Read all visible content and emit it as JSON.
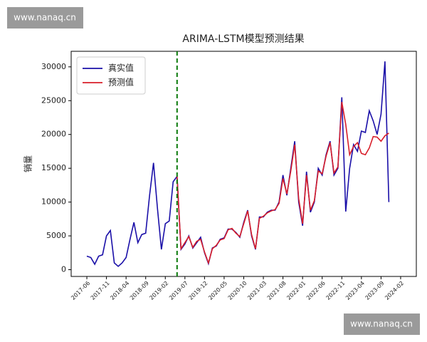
{
  "watermarks": [
    "www.nanaq.cn",
    "www.nanaq.cn"
  ],
  "chart_data": {
    "type": "line",
    "title": "ARIMA-LSTM模型预测结果",
    "y_label": "销量",
    "categories": [
      "2017-06",
      null,
      null,
      null,
      null,
      "2017-11",
      null,
      null,
      null,
      null,
      "2018-04",
      null,
      null,
      null,
      null,
      "2018-09",
      null,
      null,
      null,
      null,
      "2019-02",
      null,
      null,
      null,
      null,
      "2019-07",
      null,
      null,
      null,
      null,
      "2019-12",
      null,
      null,
      null,
      null,
      "2020-05",
      null,
      null,
      null,
      null,
      "2020-10",
      null,
      null,
      null,
      null,
      "2021-03",
      null,
      null,
      null,
      null,
      "2021-08",
      null,
      null,
      null,
      null,
      "2022-01",
      null,
      null,
      null,
      null,
      "2022-06",
      null,
      null,
      null,
      null,
      "2022-11",
      null,
      null,
      null,
      null,
      "2023-04",
      null,
      null,
      null,
      null,
      "2023-09",
      null,
      null,
      null,
      null,
      "2024-02"
    ],
    "series": [
      {
        "name": "真实值",
        "color": "#1a0fa8",
        "values": [
          2000,
          1800,
          800,
          2000,
          2200,
          5000,
          5800,
          1000,
          500,
          1000,
          1800,
          4500,
          7000,
          4000,
          5200,
          5400,
          11000,
          15800,
          9000,
          3000,
          6800,
          7200,
          13000,
          13800,
          3000,
          3800,
          5000,
          3200,
          4000,
          4800,
          2500,
          900,
          3200,
          3500,
          4500,
          4700,
          6000,
          6000,
          5500,
          4800,
          7000,
          8800,
          5000,
          3000,
          7800,
          7800,
          8500,
          8800,
          8800,
          10000,
          14000,
          11000,
          15000,
          19000,
          10000,
          6500,
          14500,
          8500,
          10000,
          15000,
          14000,
          17000,
          19000,
          14000,
          15000,
          25500,
          8600,
          15000,
          18500,
          17500,
          20500,
          20300,
          23500,
          22000,
          20000,
          23000,
          30800,
          10000,
          null,
          null,
          null
        ]
      },
      {
        "name": "预测值",
        "color": "#d81e2a",
        "values": [
          null,
          null,
          null,
          null,
          null,
          null,
          null,
          null,
          null,
          null,
          null,
          null,
          null,
          null,
          null,
          null,
          null,
          null,
          null,
          null,
          null,
          null,
          null,
          13800,
          3100,
          4000,
          4900,
          3300,
          4200,
          4500,
          2600,
          1000,
          3100,
          3600,
          4400,
          4600,
          5900,
          6100,
          5400,
          4900,
          6800,
          8700,
          5200,
          3100,
          7600,
          7900,
          8400,
          8700,
          8900,
          9800,
          13500,
          11200,
          14600,
          18500,
          10500,
          6800,
          14000,
          8800,
          10200,
          14600,
          14200,
          16800,
          18800,
          14300,
          15200,
          24800,
          21500,
          17000,
          18200,
          18800,
          17200,
          17000,
          18000,
          19700,
          19600,
          19000,
          19800,
          20200,
          null,
          null,
          null
        ]
      }
    ],
    "ylim": [
      -1000,
      32300
    ],
    "yticks": [
      0,
      5000,
      10000,
      15000,
      20000,
      25000,
      30000
    ],
    "vline": {
      "x": 23,
      "color": "#0a7a0a",
      "style": "dashed"
    },
    "legend": "upper left",
    "grid": false
  }
}
